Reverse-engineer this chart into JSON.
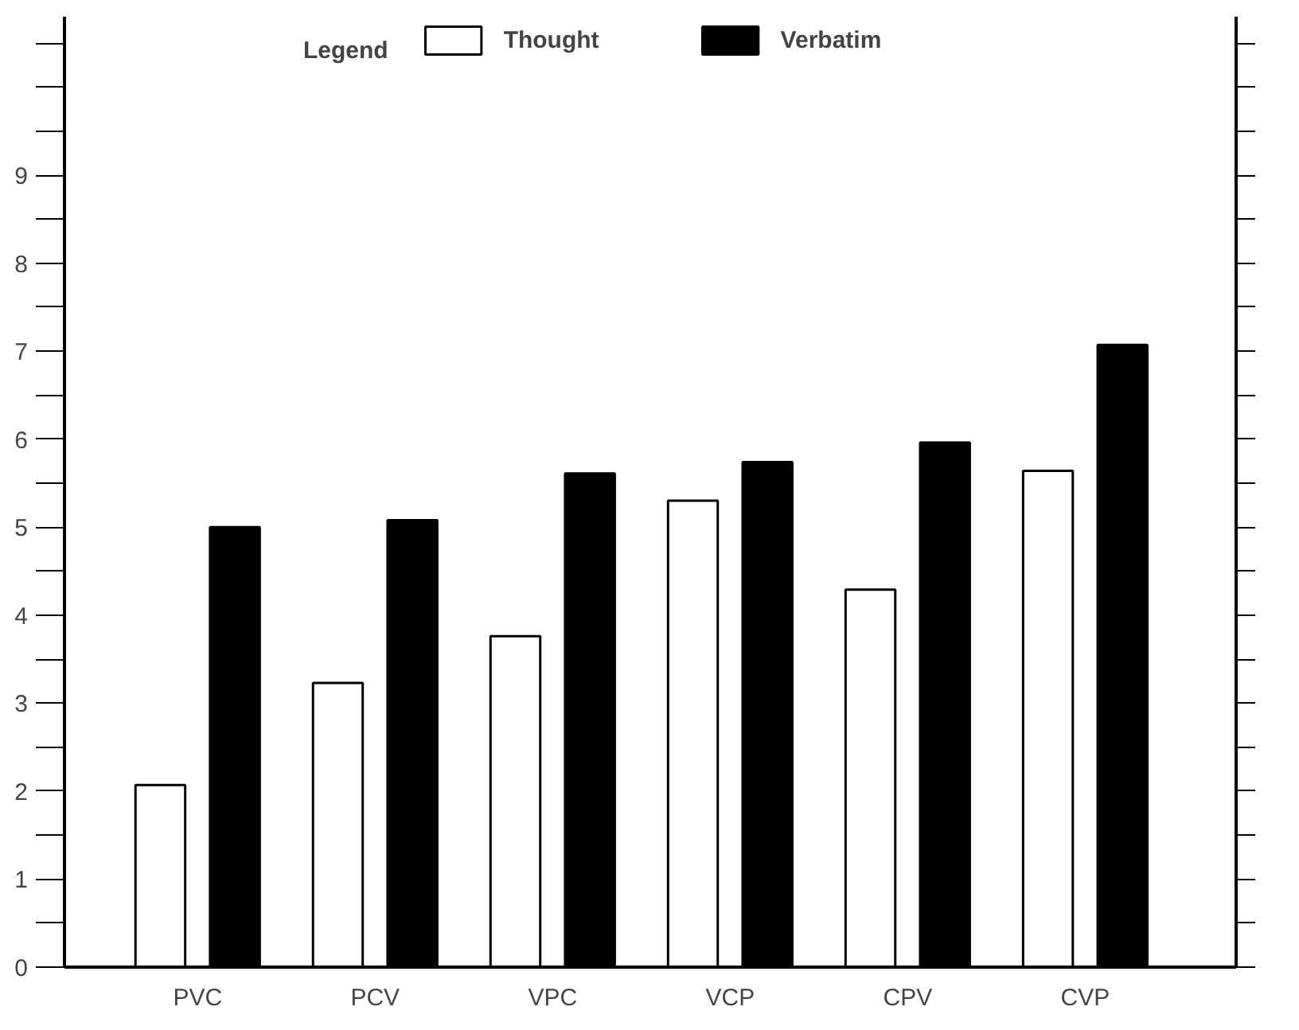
{
  "chart_data": {
    "type": "bar",
    "legend_title": "Legend",
    "categories": [
      "PVC",
      "PCV",
      "VPC",
      "VCP",
      "CPV",
      "CVP"
    ],
    "series": [
      {
        "name": "Thought",
        "color": "#ffffff",
        "values": [
          2.07,
          3.23,
          3.76,
          5.3,
          4.29,
          5.64
        ]
      },
      {
        "name": "Verbatim",
        "color": "#000000",
        "values": [
          5.0,
          5.08,
          5.61,
          5.74,
          5.96,
          7.07
        ]
      }
    ],
    "ylim": [
      0,
      10.8
    ],
    "yticks": [
      0,
      {
        "value": 0.5,
        "label": null
      },
      1,
      {
        "value": 1.5,
        "label": null
      },
      2,
      {
        "value": 2.5,
        "label": null
      },
      3,
      {
        "value": 3.5,
        "label": null
      },
      4,
      {
        "value": 4.5,
        "label": null
      },
      5,
      {
        "value": 5.5,
        "label": null
      },
      6,
      {
        "value": 6.5,
        "label": null
      },
      7,
      {
        "value": 7.5,
        "label": null
      },
      8,
      {
        "value": 8.5,
        "label": null
      },
      9,
      {
        "value": 9.5,
        "label": null
      },
      {
        "value": 10,
        "label": null
      },
      {
        "value": 10.5,
        "label": null
      }
    ],
    "grid": false,
    "legend": "top"
  }
}
